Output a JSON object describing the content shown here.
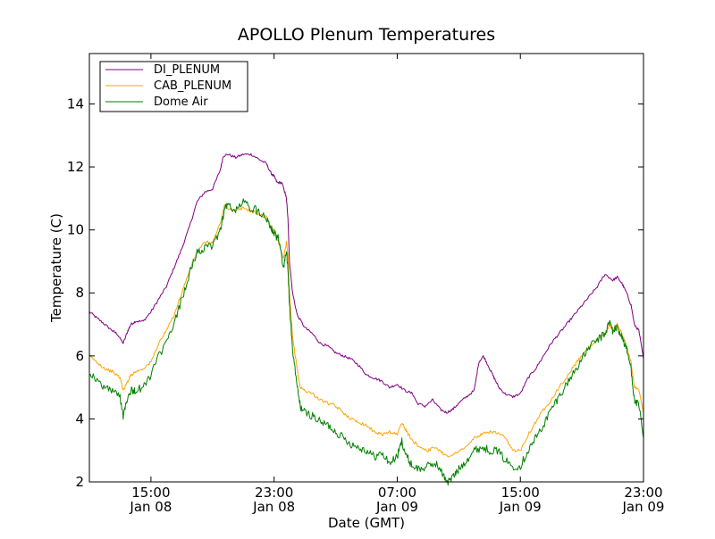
{
  "chart_data": {
    "type": "line",
    "title": "APOLLO Plenum Temperatures",
    "xlabel": "Date (GMT)",
    "ylabel": "Temperature (C)",
    "x_unit": "hours since Jan 08 11:00 GMT",
    "xlim": [
      0,
      36
    ],
    "ylim": [
      2,
      15.6
    ],
    "grid": false,
    "legend_position": "top-left",
    "y_ticks": [
      2,
      4,
      6,
      8,
      10,
      12,
      14
    ],
    "x_ticks": [
      {
        "x": 4,
        "line1": "15:00",
        "line2": "Jan 08"
      },
      {
        "x": 12,
        "line1": "23:00",
        "line2": "Jan 08"
      },
      {
        "x": 20,
        "line1": "07:00",
        "line2": "Jan 09"
      },
      {
        "x": 28,
        "line1": "15:00",
        "line2": "Jan 09"
      },
      {
        "x": 36,
        "line1": "23:00",
        "line2": "Jan 09"
      }
    ],
    "series": [
      {
        "name": "DI_PLENUM",
        "color": "#800080",
        "points": [
          [
            0,
            7.4
          ],
          [
            0.5,
            7.2
          ],
          [
            1,
            7.0
          ],
          [
            1.5,
            6.8
          ],
          [
            1.8,
            6.7
          ],
          [
            2.2,
            6.4
          ],
          [
            2.5,
            6.8
          ],
          [
            2.7,
            7.0
          ],
          [
            3.0,
            7.1
          ],
          [
            3.5,
            7.1
          ],
          [
            4.0,
            7.4
          ],
          [
            4.5,
            7.8
          ],
          [
            5.0,
            8.2
          ],
          [
            5.5,
            8.8
          ],
          [
            6.0,
            9.4
          ],
          [
            6.5,
            10.1
          ],
          [
            7.0,
            10.9
          ],
          [
            7.5,
            11.2
          ],
          [
            8.0,
            11.3
          ],
          [
            8.5,
            11.9
          ],
          [
            8.7,
            12.35
          ],
          [
            9.0,
            12.4
          ],
          [
            9.5,
            12.3
          ],
          [
            10.0,
            12.4
          ],
          [
            10.5,
            12.4
          ],
          [
            11.0,
            12.25
          ],
          [
            11.5,
            12.1
          ],
          [
            11.8,
            11.8
          ],
          [
            12.0,
            11.7
          ],
          [
            12.2,
            11.5
          ],
          [
            12.5,
            11.5
          ],
          [
            12.7,
            11.2
          ],
          [
            12.8,
            11.0
          ],
          [
            12.9,
            10.4
          ],
          [
            13.0,
            9.0
          ],
          [
            13.2,
            8.0
          ],
          [
            13.5,
            7.3
          ],
          [
            14.0,
            6.9
          ],
          [
            14.5,
            6.7
          ],
          [
            15.0,
            6.4
          ],
          [
            15.5,
            6.3
          ],
          [
            16.0,
            6.1
          ],
          [
            16.5,
            6.0
          ],
          [
            17.0,
            5.9
          ],
          [
            17.5,
            5.7
          ],
          [
            18.0,
            5.4
          ],
          [
            18.5,
            5.3
          ],
          [
            19.0,
            5.2
          ],
          [
            19.5,
            5.0
          ],
          [
            20.0,
            5.1
          ],
          [
            20.5,
            4.9
          ],
          [
            21.0,
            4.8
          ],
          [
            21.3,
            4.5
          ],
          [
            21.8,
            4.4
          ],
          [
            22.3,
            4.6
          ],
          [
            22.8,
            4.3
          ],
          [
            23.2,
            4.2
          ],
          [
            23.6,
            4.3
          ],
          [
            24.0,
            4.5
          ],
          [
            24.5,
            4.7
          ],
          [
            25.0,
            4.9
          ],
          [
            25.3,
            5.8
          ],
          [
            25.6,
            6.0
          ],
          [
            26.0,
            5.6
          ],
          [
            26.3,
            5.3
          ],
          [
            26.6,
            5.0
          ],
          [
            27.0,
            4.8
          ],
          [
            27.5,
            4.7
          ],
          [
            28.0,
            4.8
          ],
          [
            28.5,
            5.3
          ],
          [
            29.0,
            5.6
          ],
          [
            29.5,
            6.0
          ],
          [
            30.0,
            6.4
          ],
          [
            30.5,
            6.7
          ],
          [
            31.0,
            7.0
          ],
          [
            31.5,
            7.3
          ],
          [
            32.0,
            7.6
          ],
          [
            32.5,
            7.9
          ],
          [
            33.0,
            8.2
          ],
          [
            33.5,
            8.6
          ],
          [
            34.0,
            8.4
          ],
          [
            34.3,
            8.5
          ],
          [
            34.6,
            8.3
          ],
          [
            34.9,
            8.0
          ],
          [
            35.2,
            7.6
          ],
          [
            35.4,
            7.0
          ],
          [
            35.7,
            6.8
          ],
          [
            36.0,
            5.9
          ]
        ]
      },
      {
        "name": "CAB_PLENUM",
        "color": "#ffa500",
        "points": [
          [
            0,
            6.0
          ],
          [
            0.5,
            5.8
          ],
          [
            1,
            5.6
          ],
          [
            1.5,
            5.5
          ],
          [
            2.0,
            5.3
          ],
          [
            2.2,
            4.9
          ],
          [
            2.4,
            5.1
          ],
          [
            2.7,
            5.4
          ],
          [
            3.0,
            5.5
          ],
          [
            3.5,
            5.6
          ],
          [
            4.0,
            5.8
          ],
          [
            4.5,
            6.4
          ],
          [
            5.0,
            6.8
          ],
          [
            5.5,
            7.3
          ],
          [
            6.0,
            8.0
          ],
          [
            6.5,
            8.7
          ],
          [
            7.0,
            9.3
          ],
          [
            7.5,
            9.6
          ],
          [
            8.0,
            9.6
          ],
          [
            8.5,
            10.2
          ],
          [
            8.8,
            10.8
          ],
          [
            9.0,
            10.7
          ],
          [
            9.5,
            10.6
          ],
          [
            10.0,
            10.7
          ],
          [
            10.5,
            10.6
          ],
          [
            11.0,
            10.5
          ],
          [
            11.5,
            10.4
          ],
          [
            11.8,
            10.1
          ],
          [
            12.0,
            10.0
          ],
          [
            12.3,
            9.6
          ],
          [
            12.6,
            9.1
          ],
          [
            12.8,
            9.6
          ],
          [
            12.9,
            9.2
          ],
          [
            13.0,
            8.0
          ],
          [
            13.2,
            6.6
          ],
          [
            13.5,
            5.6
          ],
          [
            13.7,
            5.0
          ],
          [
            14.0,
            4.9
          ],
          [
            14.5,
            4.8
          ],
          [
            15.0,
            4.6
          ],
          [
            15.5,
            4.5
          ],
          [
            16.0,
            4.4
          ],
          [
            16.5,
            4.2
          ],
          [
            17.0,
            4.0
          ],
          [
            17.5,
            3.9
          ],
          [
            18.0,
            3.8
          ],
          [
            18.5,
            3.6
          ],
          [
            19.0,
            3.5
          ],
          [
            19.5,
            3.6
          ],
          [
            20.0,
            3.5
          ],
          [
            20.3,
            3.9
          ],
          [
            20.6,
            3.6
          ],
          [
            21.0,
            3.3
          ],
          [
            21.5,
            3.1
          ],
          [
            22.0,
            3.0
          ],
          [
            22.5,
            3.1
          ],
          [
            23.0,
            2.9
          ],
          [
            23.5,
            2.8
          ],
          [
            24.0,
            3.0
          ],
          [
            24.5,
            3.1
          ],
          [
            25.0,
            3.4
          ],
          [
            25.5,
            3.5
          ],
          [
            26.0,
            3.6
          ],
          [
            26.5,
            3.55
          ],
          [
            27.0,
            3.4
          ],
          [
            27.5,
            3.0
          ],
          [
            28.0,
            3.0
          ],
          [
            28.5,
            3.5
          ],
          [
            29.0,
            3.9
          ],
          [
            29.5,
            4.3
          ],
          [
            30.0,
            4.6
          ],
          [
            30.5,
            5.0
          ],
          [
            31.0,
            5.3
          ],
          [
            31.5,
            5.7
          ],
          [
            32.0,
            6.0
          ],
          [
            32.5,
            6.3
          ],
          [
            33.0,
            6.5
          ],
          [
            33.5,
            6.7
          ],
          [
            33.8,
            7.0
          ],
          [
            34.0,
            6.8
          ],
          [
            34.3,
            7.0
          ],
          [
            34.6,
            6.7
          ],
          [
            34.9,
            6.3
          ],
          [
            35.2,
            5.8
          ],
          [
            35.4,
            5.0
          ],
          [
            35.7,
            4.9
          ],
          [
            36.0,
            4.2
          ]
        ]
      },
      {
        "name": "Dome Air",
        "color": "#008000",
        "points": [
          [
            0,
            5.5
          ],
          [
            0.5,
            5.2
          ],
          [
            1.0,
            5.0
          ],
          [
            1.5,
            4.9
          ],
          [
            2.0,
            4.7
          ],
          [
            2.2,
            4.1
          ],
          [
            2.4,
            4.6
          ],
          [
            2.7,
            4.9
          ],
          [
            3.0,
            4.9
          ],
          [
            3.5,
            5.0
          ],
          [
            4.0,
            5.4
          ],
          [
            4.5,
            6.0
          ],
          [
            5.0,
            6.4
          ],
          [
            5.5,
            7.0
          ],
          [
            6.0,
            7.8
          ],
          [
            6.5,
            8.6
          ],
          [
            7.0,
            9.3
          ],
          [
            7.5,
            9.4
          ],
          [
            8.0,
            9.5
          ],
          [
            8.5,
            10.0
          ],
          [
            8.8,
            10.7
          ],
          [
            9.0,
            10.8
          ],
          [
            9.5,
            10.6
          ],
          [
            10.0,
            10.9
          ],
          [
            10.5,
            10.7
          ],
          [
            11.0,
            10.6
          ],
          [
            11.5,
            10.4
          ],
          [
            11.8,
            10.1
          ],
          [
            12.0,
            9.9
          ],
          [
            12.3,
            9.7
          ],
          [
            12.6,
            8.8
          ],
          [
            12.8,
            9.3
          ],
          [
            12.9,
            8.8
          ],
          [
            13.0,
            7.6
          ],
          [
            13.2,
            6.2
          ],
          [
            13.5,
            5.0
          ],
          [
            13.7,
            4.4
          ],
          [
            14.0,
            4.2
          ],
          [
            14.5,
            4.1
          ],
          [
            15.0,
            3.9
          ],
          [
            15.5,
            3.8
          ],
          [
            16.0,
            3.6
          ],
          [
            16.5,
            3.4
          ],
          [
            17.0,
            3.2
          ],
          [
            17.5,
            3.1
          ],
          [
            18.0,
            3.0
          ],
          [
            18.5,
            2.8
          ],
          [
            19.0,
            2.9
          ],
          [
            19.5,
            2.6
          ],
          [
            20.0,
            2.8
          ],
          [
            20.3,
            3.3
          ],
          [
            20.6,
            2.8
          ],
          [
            21.0,
            2.5
          ],
          [
            21.5,
            2.4
          ],
          [
            22.0,
            2.5
          ],
          [
            22.5,
            2.6
          ],
          [
            23.0,
            2.2
          ],
          [
            23.3,
            2.0
          ],
          [
            23.7,
            2.2
          ],
          [
            24.0,
            2.4
          ],
          [
            24.5,
            2.7
          ],
          [
            25.0,
            3.0
          ],
          [
            25.5,
            3.1
          ],
          [
            26.0,
            3.0
          ],
          [
            26.5,
            3.0
          ],
          [
            27.0,
            2.7
          ],
          [
            27.5,
            2.5
          ],
          [
            28.0,
            2.5
          ],
          [
            28.5,
            3.0
          ],
          [
            29.0,
            3.4
          ],
          [
            29.5,
            3.8
          ],
          [
            30.0,
            4.3
          ],
          [
            30.5,
            4.7
          ],
          [
            31.0,
            5.1
          ],
          [
            31.5,
            5.5
          ],
          [
            32.0,
            5.9
          ],
          [
            32.5,
            6.3
          ],
          [
            33.0,
            6.5
          ],
          [
            33.5,
            6.7
          ],
          [
            33.8,
            7.1
          ],
          [
            34.0,
            6.8
          ],
          [
            34.3,
            6.9
          ],
          [
            34.6,
            6.6
          ],
          [
            34.9,
            6.2
          ],
          [
            35.2,
            5.6
          ],
          [
            35.4,
            4.6
          ],
          [
            35.7,
            4.4
          ],
          [
            36.0,
            3.4
          ]
        ]
      }
    ]
  }
}
